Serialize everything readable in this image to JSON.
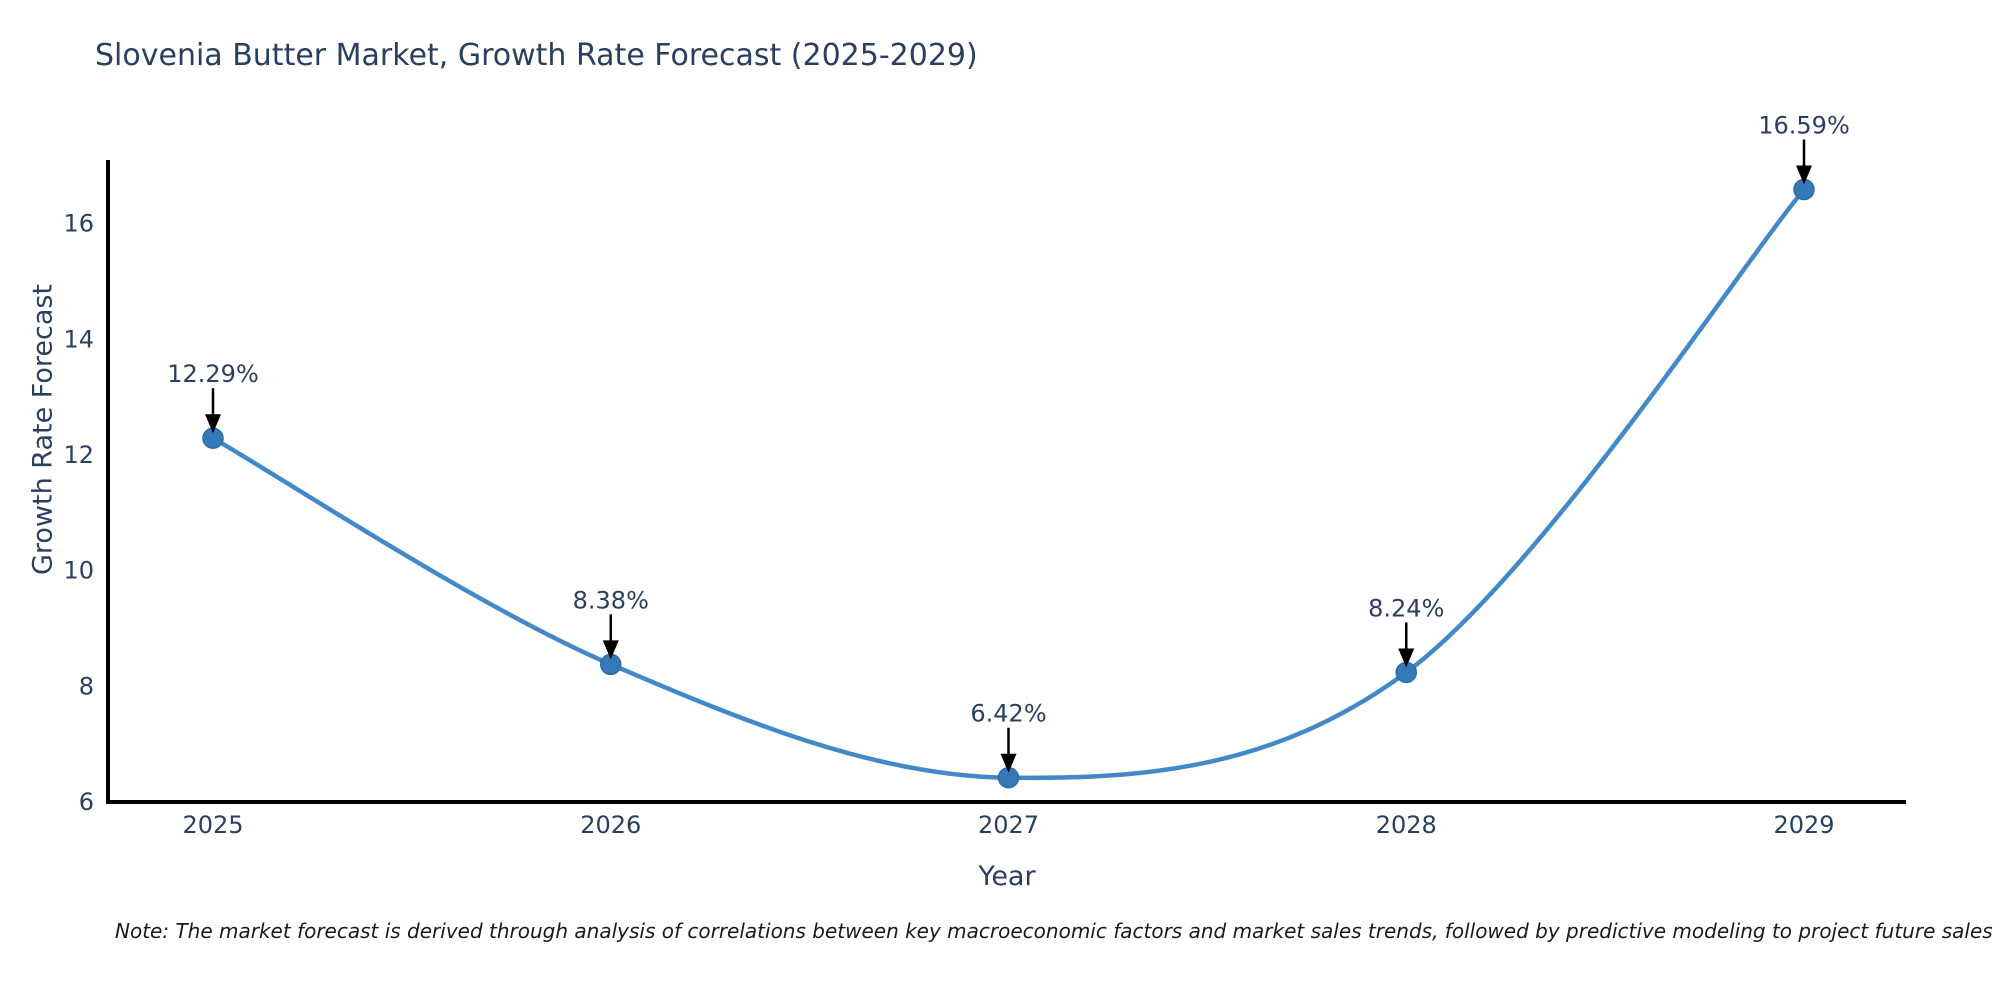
{
  "header": {
    "title": "Slovenia Butter Market, Growth Rate Forecast (2025-2029)"
  },
  "footnote": {
    "text": "Note: The market forecast is derived through analysis of correlations between key macroeconomic factors and market sales trends, followed by predictive modeling to project future sales"
  },
  "chart_data": {
    "type": "line",
    "title": "Slovenia Butter Market, Growth Rate Forecast (2025-2029)",
    "xlabel": "Year",
    "ylabel": "Growth Rate Forecast",
    "categories": [
      "2025",
      "2026",
      "2027",
      "2028",
      "2029"
    ],
    "series": [
      {
        "name": "Growth Rate Forecast",
        "values": [
          12.29,
          8.38,
          6.42,
          8.24,
          16.59
        ]
      }
    ],
    "point_labels": [
      "12.29%",
      "8.38%",
      "6.42%",
      "8.24%",
      "16.59%"
    ],
    "yticks": [
      6,
      8,
      10,
      12,
      14,
      16
    ],
    "ylim": [
      6,
      17.1
    ],
    "line_shape": "spline",
    "grid": false,
    "legend_position": "none",
    "annotation_style": "arrow-down-to-point",
    "colors": {
      "line": "#4389c8",
      "marker_fill": "#3579b8",
      "marker_edge": "#2e6da4",
      "axis": "#000000",
      "tick_text": "#2a3f5f",
      "title_text": "#2a3f5f",
      "annotation_text": "#2a3f5f",
      "arrow": "#000000"
    }
  }
}
